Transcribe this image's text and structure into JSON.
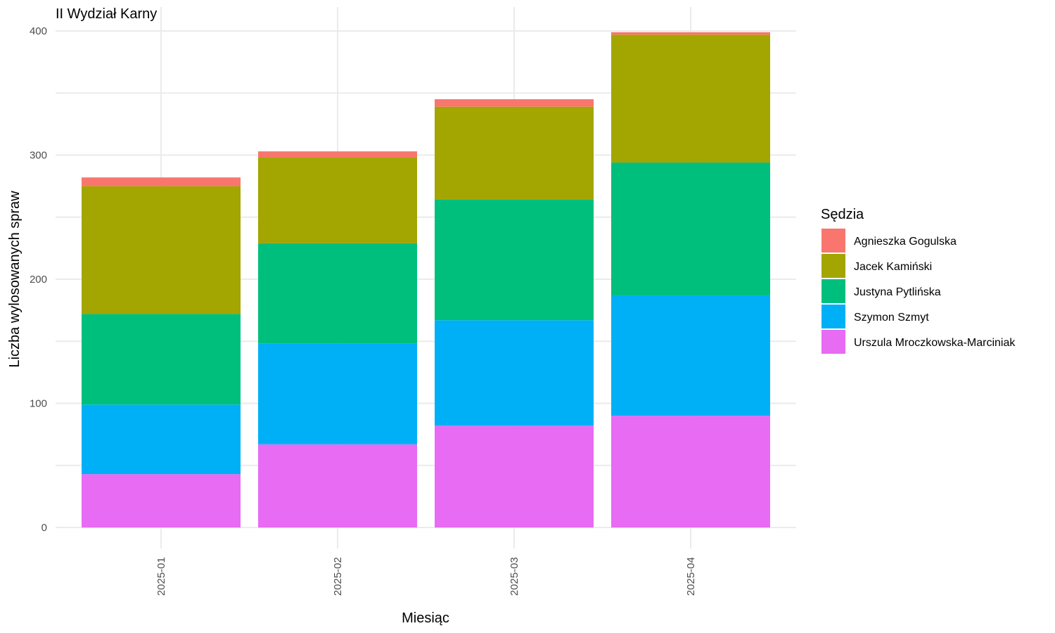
{
  "chart_data": {
    "type": "bar",
    "stacked": true,
    "title": "II Wydział Karny",
    "xlabel": "Miesiąc",
    "ylabel": "Liczba wylosowanych spraw",
    "ylim": [
      0,
      400
    ],
    "yticks": [
      0,
      100,
      200,
      300,
      400
    ],
    "grid": true,
    "legend_title": "Sędzia",
    "legend_position": "right",
    "categories": [
      "2025-01",
      "2025-02",
      "2025-03",
      "2025-04"
    ],
    "series": [
      {
        "name": "Urszula Mroczkowska-Marciniak",
        "color": "#E76BF3",
        "values": [
          43,
          67,
          82,
          90
        ]
      },
      {
        "name": "Szymon Szmyt",
        "color": "#00B0F6",
        "values": [
          56,
          81,
          85,
          97
        ]
      },
      {
        "name": "Justyna Pytlińska",
        "color": "#00BF7D",
        "values": [
          73,
          81,
          97,
          107
        ]
      },
      {
        "name": "Jacek Kamiński",
        "color": "#A3A500",
        "values": [
          103,
          69,
          75,
          103
        ]
      },
      {
        "name": "Agnieszka Gogulska",
        "color": "#F8766D",
        "values": [
          7,
          5,
          6,
          2
        ]
      }
    ],
    "legend_order": [
      "Agnieszka Gogulska",
      "Jacek Kamiński",
      "Justyna Pytlińska",
      "Szymon Szmyt",
      "Urszula Mroczkowska-Marciniak"
    ]
  }
}
